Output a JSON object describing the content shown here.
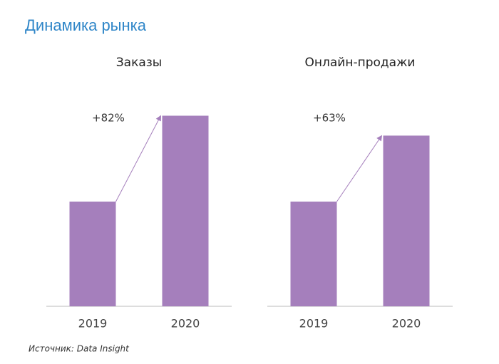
{
  "title": "Динамика рынка",
  "source": "Источник: Data Insight",
  "chart_data": [
    {
      "type": "bar",
      "title": "Заказы",
      "categories": [
        "2019",
        "2020"
      ],
      "values": [
        100,
        182
      ],
      "color": "#a57fbc",
      "ylim": [
        0,
        200
      ],
      "annotation": "+82%"
    },
    {
      "type": "bar",
      "title": "Онлайн-продажи",
      "categories": [
        "2019",
        "2020"
      ],
      "values": [
        100,
        163
      ],
      "color": "#a57fbc",
      "ylim": [
        0,
        200
      ],
      "annotation": "+63%"
    }
  ]
}
